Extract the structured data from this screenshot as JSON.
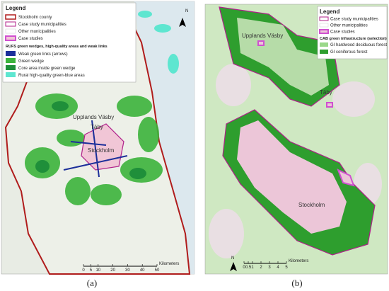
{
  "panels": [
    {
      "legend": {
        "title": "Legend",
        "items": [
          "Stockholm county",
          "Case study municipalities",
          "Other municipalities",
          "Case studies"
        ],
        "section": "RUFS green wedges, high-quality areas and weak links",
        "section_items": [
          "Weak green links (arrows)",
          "Green wedge",
          "Core area inside green wedge",
          "Rural high-quality green-blue areas"
        ]
      },
      "places": [
        "Upplands Väsby",
        "Täby",
        "Stockholm"
      ],
      "north": "N",
      "scale": {
        "ticks": [
          0,
          5,
          10,
          20,
          30,
          40,
          50
        ],
        "unit": "Kilometers"
      },
      "caption": "(a)"
    },
    {
      "legend": {
        "title": "Legend",
        "items": [
          "Case study municipalities",
          "Other municipalities",
          "Case studies"
        ],
        "section": "CAB green infrastructure (selection)",
        "section_items": [
          "GI hardwood deciduous forest",
          "GI coniferous forest"
        ]
      },
      "places": [
        "Upplands Väsby",
        "Täby",
        "Stockholm"
      ],
      "north": "N",
      "scale": {
        "ticks": [
          0,
          0.5,
          1,
          2,
          3,
          4,
          5
        ],
        "unit": "Kilometers"
      },
      "caption": "(b)"
    }
  ]
}
